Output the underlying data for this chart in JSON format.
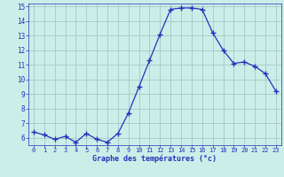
{
  "hours": [
    0,
    1,
    2,
    3,
    4,
    5,
    6,
    7,
    8,
    9,
    10,
    11,
    12,
    13,
    14,
    15,
    16,
    17,
    18,
    19,
    20,
    21,
    22,
    23
  ],
  "temperatures": [
    6.4,
    6.2,
    5.9,
    6.1,
    5.7,
    6.3,
    5.9,
    5.7,
    6.3,
    7.7,
    9.5,
    11.3,
    13.1,
    14.8,
    14.9,
    14.9,
    14.8,
    13.2,
    12.0,
    11.1,
    11.2,
    10.9,
    10.4,
    9.2
  ],
  "line_color": "#2233bb",
  "marker": "+",
  "marker_size": 4,
  "bg_color": "#cceee8",
  "grid_color": "#aacccc",
  "xlabel": "Graphe des températures (°c)",
  "xlabel_color": "#2233bb",
  "tick_color": "#2233bb",
  "ylim": [
    5.5,
    15.2
  ],
  "yticks": [
    6,
    7,
    8,
    9,
    10,
    11,
    12,
    13,
    14,
    15
  ],
  "xticks": [
    0,
    1,
    2,
    3,
    4,
    5,
    6,
    7,
    8,
    9,
    10,
    11,
    12,
    13,
    14,
    15,
    16,
    17,
    18,
    19,
    20,
    21,
    22,
    23
  ],
  "xtick_labels": [
    "0",
    "1",
    "2",
    "3",
    "4",
    "5",
    "6",
    "7",
    "8",
    "9",
    "10",
    "11",
    "12",
    "13",
    "14",
    "15",
    "16",
    "17",
    "18",
    "19",
    "20",
    "21",
    "22",
    "23"
  ]
}
